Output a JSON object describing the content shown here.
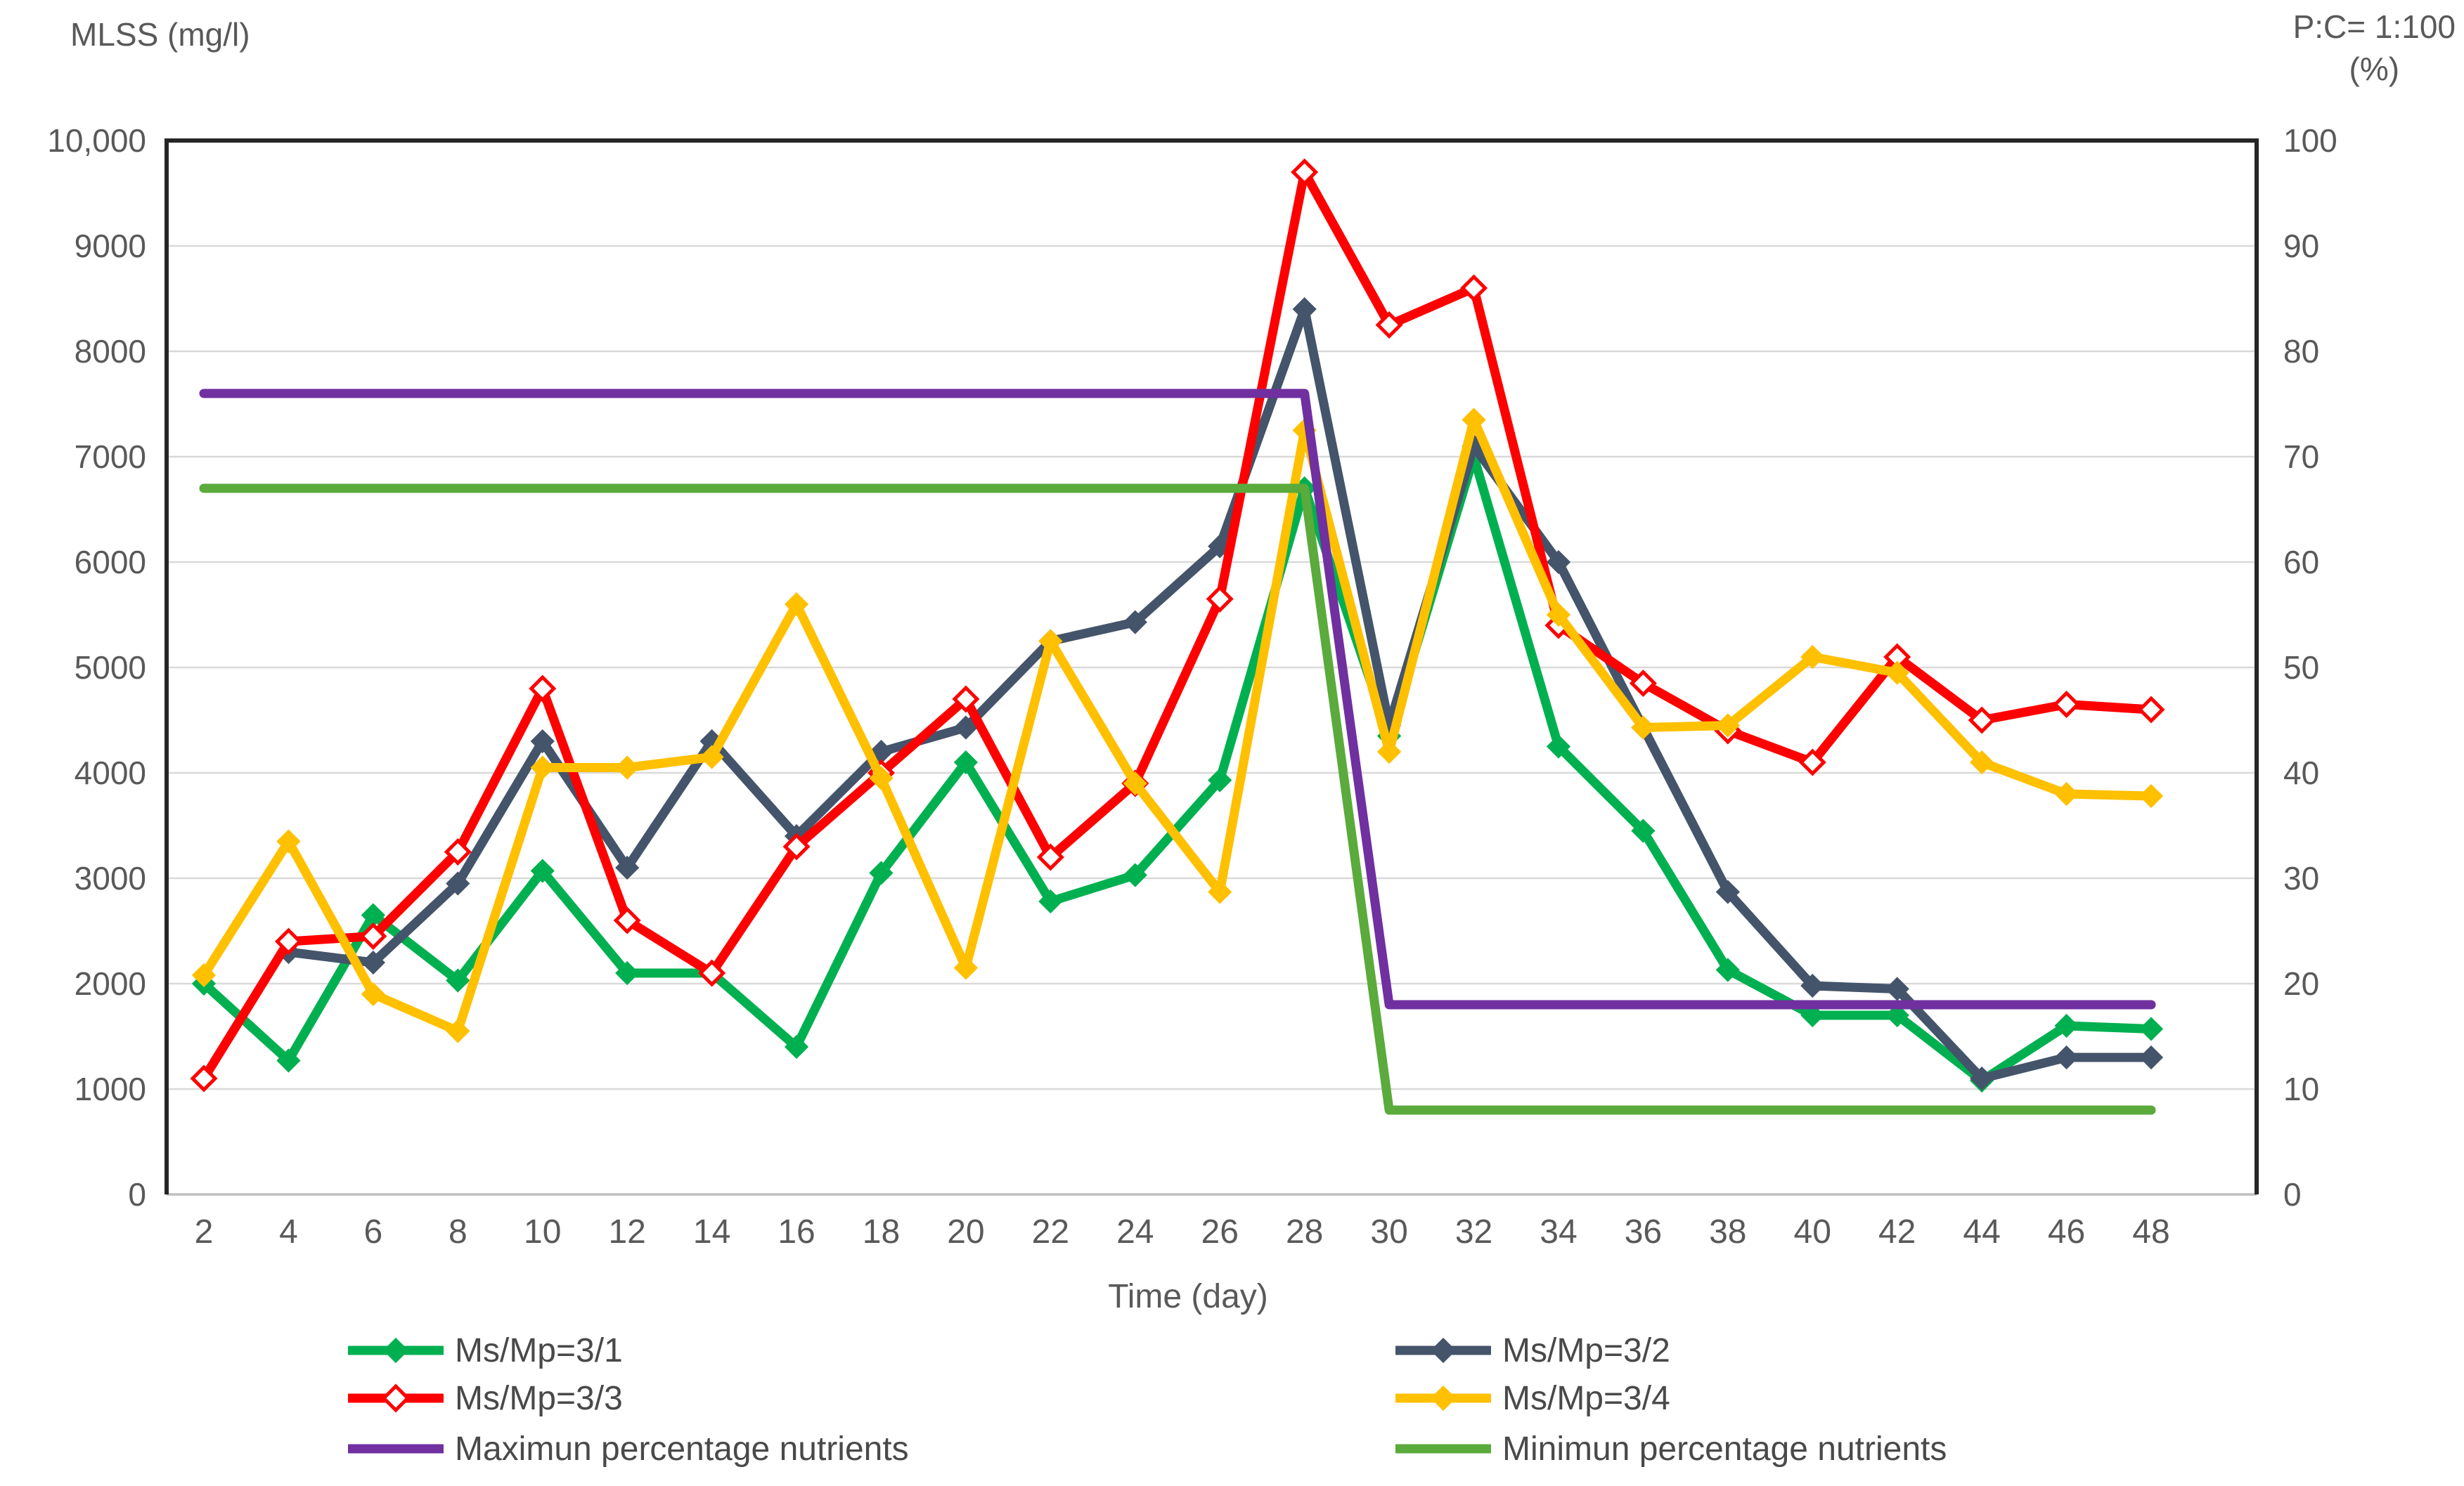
{
  "labels": {
    "left_axis_title": "MLSS (mg/l)",
    "right_axis_title_line1": "P:C= 1:100",
    "right_axis_title_line2": "(%)",
    "x_axis_title": "Time (day)"
  },
  "chart_data": {
    "type": "line",
    "title": "",
    "xlabel": "Time (day)",
    "ylabel_left": "MLSS (mg/l)",
    "ylabel_right": "P:C= 1:100 (%)",
    "ylim_left": [
      0,
      10000
    ],
    "ylim_right": [
      0,
      100
    ],
    "grid": "horizontal",
    "legend_position": "bottom",
    "x": [
      2,
      4,
      6,
      8,
      10,
      12,
      14,
      16,
      18,
      20,
      22,
      24,
      26,
      28,
      30,
      32,
      34,
      36,
      38,
      40,
      42,
      44,
      46,
      48
    ],
    "x_tick_labels": [
      "2",
      "4",
      "6",
      "8",
      "10",
      "12",
      "14",
      "16",
      "18",
      "20",
      "22",
      "24",
      "26",
      "28",
      "30",
      "32",
      "34",
      "36",
      "38",
      "40",
      "42",
      "44",
      "46",
      "48"
    ],
    "left_tick_labels": [
      "10,000",
      "9000",
      "8000",
      "7000",
      "6000",
      "5000",
      "4000",
      "3000",
      "2000",
      "1000",
      "0"
    ],
    "right_tick_labels": [
      "100",
      "90",
      "80",
      "70",
      "60",
      "50",
      "40",
      "30",
      "20",
      "10",
      "0"
    ],
    "series": [
      {
        "name": "Ms/Mp=3/1",
        "color": "#00B050",
        "axis": "left",
        "marker": "diamond",
        "values": [
          2000,
          1270,
          2650,
          2030,
          3070,
          2100,
          2100,
          1400,
          3050,
          4100,
          2780,
          3030,
          3930,
          6700,
          4350,
          7000,
          4250,
          3450,
          2130,
          1700,
          1700,
          1080,
          1600,
          1570
        ]
      },
      {
        "name": "Ms/Mp=3/2",
        "color": "#44546A",
        "axis": "left",
        "marker": "diamond",
        "values": [
          null,
          2300,
          2200,
          2950,
          4300,
          3100,
          4300,
          3400,
          4200,
          4430,
          5250,
          5430,
          6150,
          8400,
          4450,
          7100,
          6000,
          4430,
          2870,
          1980,
          1950,
          1100,
          1300,
          1300
        ]
      },
      {
        "name": "Ms/Mp=3/3",
        "color": "#FF0000",
        "axis": "left",
        "marker": "diamond-open",
        "values": [
          1100,
          2400,
          2450,
          3250,
          4800,
          2600,
          2100,
          3300,
          4000,
          4700,
          3200,
          3900,
          5650,
          9700,
          8250,
          8600,
          5400,
          4850,
          4400,
          4100,
          5100,
          4500,
          4650,
          4600
        ]
      },
      {
        "name": "Ms/Mp=3/4",
        "color": "#FFC000",
        "axis": "left",
        "marker": "diamond",
        "values": [
          2080,
          3350,
          1900,
          1550,
          4050,
          4050,
          4150,
          5600,
          3950,
          2150,
          5250,
          3900,
          2870,
          7250,
          4200,
          7350,
          5500,
          4430,
          4450,
          5100,
          4950,
          4100,
          3800,
          3780
        ]
      },
      {
        "name": "Maximun percentage nutrients",
        "color": "#7030A0",
        "axis": "right",
        "marker": "none",
        "values": [
          76,
          76,
          76,
          76,
          76,
          76,
          76,
          76,
          76,
          76,
          76,
          76,
          76,
          76,
          18,
          18,
          18,
          18,
          18,
          18,
          18,
          18,
          18,
          18
        ]
      },
      {
        "name": "Minimun percentage nutrients",
        "color": "#5AAA3C",
        "axis": "right",
        "marker": "none",
        "values": [
          67,
          67,
          67,
          67,
          67,
          67,
          67,
          67,
          67,
          67,
          67,
          67,
          67,
          67,
          8,
          8,
          8,
          8,
          8,
          8,
          8,
          8,
          8,
          8
        ]
      }
    ]
  },
  "style": {
    "gridline_color": "#D9D9D9",
    "bottom_axis_color": "#BFBFBF",
    "frame_color": "#262626"
  },
  "legend": {
    "columns": [
      [
        0,
        2,
        4
      ],
      [
        1,
        3,
        5
      ]
    ]
  }
}
